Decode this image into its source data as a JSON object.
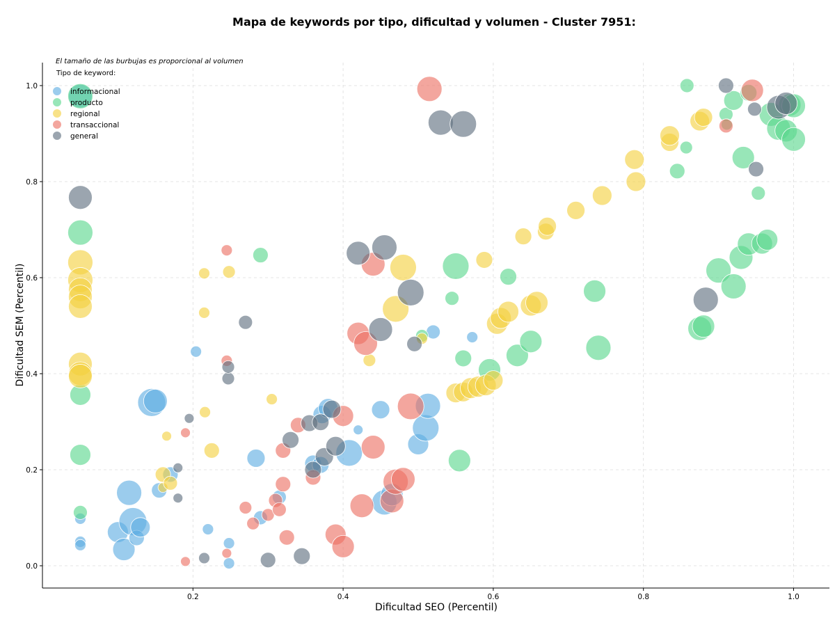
{
  "chart_data": {
    "type": "scatter",
    "title": "Mapa de keywords por tipo, dificultad y volumen - Cluster 7951:",
    "xlabel": "Dificultad SEO (Percentil)",
    "ylabel": "Dificultad SEM (Percentil)",
    "xlim": [
      0.0,
      1.05
    ],
    "ylim": [
      -0.047,
      1.05
    ],
    "xticks": [
      "0.2",
      "0.4",
      "0.6",
      "0.8",
      "1.0"
    ],
    "yticks": [
      "0.0",
      "0.2",
      "0.4",
      "0.6",
      "0.8",
      "1.0"
    ],
    "grid": true,
    "size_note": "El tamaño de las burbujas es proporcional al volumen",
    "legend_title": "Tipo de keyword:",
    "legend_position": "top-left",
    "series": [
      {
        "name": "informacional",
        "color": "#5dade2",
        "points": [
          [
            0.05,
            0.098,
            8
          ],
          [
            0.05,
            0.05,
            8
          ],
          [
            0.05,
            0.043,
            8
          ],
          [
            0.05,
            0.978,
            17
          ],
          [
            0.1,
            0.07,
            15
          ],
          [
            0.108,
            0.034,
            16
          ],
          [
            0.115,
            0.152,
            18
          ],
          [
            0.12,
            0.092,
            20
          ],
          [
            0.125,
            0.058,
            11
          ],
          [
            0.13,
            0.08,
            14
          ],
          [
            0.145,
            0.34,
            20
          ],
          [
            0.15,
            0.343,
            17
          ],
          [
            0.155,
            0.157,
            11
          ],
          [
            0.17,
            0.19,
            11
          ],
          [
            0.204,
            0.446,
            8
          ],
          [
            0.22,
            0.076,
            8
          ],
          [
            0.248,
            0.047,
            8
          ],
          [
            0.248,
            0.005,
            8
          ],
          [
            0.284,
            0.224,
            13
          ],
          [
            0.29,
            0.1,
            10
          ],
          [
            0.315,
            0.143,
            10
          ],
          [
            0.36,
            0.213,
            12
          ],
          [
            0.37,
            0.21,
            12
          ],
          [
            0.372,
            0.315,
            13
          ],
          [
            0.38,
            0.328,
            14
          ],
          [
            0.408,
            0.235,
            19
          ],
          [
            0.42,
            0.283,
            7
          ],
          [
            0.45,
            0.325,
            13
          ],
          [
            0.455,
            0.132,
            18
          ],
          [
            0.465,
            0.148,
            16
          ],
          [
            0.5,
            0.253,
            15
          ],
          [
            0.51,
            0.287,
            19
          ],
          [
            0.513,
            0.333,
            18
          ],
          [
            0.52,
            0.487,
            10
          ],
          [
            0.572,
            0.476,
            8
          ]
        ]
      },
      {
        "name": "producto",
        "color": "#58d68d",
        "points": [
          [
            0.05,
            0.978,
            18
          ],
          [
            0.05,
            0.694,
            18
          ],
          [
            0.05,
            0.356,
            15
          ],
          [
            0.05,
            0.231,
            15
          ],
          [
            0.05,
            0.111,
            10
          ],
          [
            0.29,
            0.647,
            11
          ],
          [
            0.505,
            0.479,
            9
          ],
          [
            0.545,
            0.557,
            10
          ],
          [
            0.55,
            0.624,
            19
          ],
          [
            0.555,
            0.219,
            16
          ],
          [
            0.56,
            0.432,
            12
          ],
          [
            0.595,
            0.408,
            16
          ],
          [
            0.62,
            0.602,
            12
          ],
          [
            0.632,
            0.438,
            16
          ],
          [
            0.65,
            0.467,
            16
          ],
          [
            0.735,
            0.572,
            16
          ],
          [
            0.74,
            0.454,
            18
          ],
          [
            0.845,
            0.822,
            11
          ],
          [
            0.857,
            0.871,
            9
          ],
          [
            0.858,
            1.0,
            10
          ],
          [
            0.875,
            0.494,
            17
          ],
          [
            0.88,
            0.499,
            16
          ],
          [
            0.9,
            0.615,
            18
          ],
          [
            0.91,
            0.94,
            10
          ],
          [
            0.911,
            0.919,
            8
          ],
          [
            0.92,
            0.582,
            18
          ],
          [
            0.92,
            0.969,
            14
          ],
          [
            0.93,
            0.642,
            17
          ],
          [
            0.933,
            0.85,
            16
          ],
          [
            0.94,
            0.67,
            16
          ],
          [
            0.94,
            0.985,
            12
          ],
          [
            0.953,
            0.776,
            10
          ],
          [
            0.958,
            0.671,
            15
          ],
          [
            0.965,
            0.679,
            15
          ],
          [
            0.97,
            0.94,
            17
          ],
          [
            0.98,
            0.911,
            17
          ],
          [
            0.99,
            0.906,
            16
          ],
          [
            0.995,
            0.96,
            16
          ],
          [
            1.0,
            0.958,
            17
          ],
          [
            1.0,
            0.888,
            17
          ]
        ]
      },
      {
        "name": "regional",
        "color": "#f4d03f",
        "points": [
          [
            0.05,
            0.632,
            18
          ],
          [
            0.05,
            0.595,
            18
          ],
          [
            0.05,
            0.575,
            17
          ],
          [
            0.05,
            0.56,
            17
          ],
          [
            0.05,
            0.54,
            17
          ],
          [
            0.05,
            0.42,
            17
          ],
          [
            0.05,
            0.4,
            17
          ],
          [
            0.05,
            0.395,
            17
          ],
          [
            0.16,
            0.163,
            7
          ],
          [
            0.16,
            0.19,
            11
          ],
          [
            0.165,
            0.27,
            7
          ],
          [
            0.17,
            0.172,
            10
          ],
          [
            0.215,
            0.609,
            8
          ],
          [
            0.215,
            0.527,
            8
          ],
          [
            0.216,
            0.32,
            8
          ],
          [
            0.225,
            0.24,
            11
          ],
          [
            0.248,
            0.612,
            9
          ],
          [
            0.305,
            0.347,
            8
          ],
          [
            0.435,
            0.428,
            9
          ],
          [
            0.47,
            0.535,
            19
          ],
          [
            0.48,
            0.621,
            19
          ],
          [
            0.505,
            0.473,
            8
          ],
          [
            0.55,
            0.36,
            14
          ],
          [
            0.56,
            0.362,
            14
          ],
          [
            0.57,
            0.37,
            15
          ],
          [
            0.58,
            0.373,
            15
          ],
          [
            0.59,
            0.376,
            15
          ],
          [
            0.6,
            0.386,
            14
          ],
          [
            0.605,
            0.504,
            15
          ],
          [
            0.61,
            0.516,
            15
          ],
          [
            0.62,
            0.529,
            15
          ],
          [
            0.64,
            0.686,
            12
          ],
          [
            0.65,
            0.542,
            15
          ],
          [
            0.658,
            0.548,
            16
          ],
          [
            0.67,
            0.696,
            12
          ],
          [
            0.672,
            0.707,
            13
          ],
          [
            0.588,
            0.637,
            12
          ],
          [
            0.71,
            0.74,
            13
          ],
          [
            0.745,
            0.771,
            14
          ],
          [
            0.788,
            0.846,
            14
          ],
          [
            0.79,
            0.8,
            14
          ],
          [
            0.835,
            0.882,
            13
          ],
          [
            0.835,
            0.896,
            14
          ],
          [
            0.875,
            0.926,
            14
          ],
          [
            0.88,
            0.934,
            13
          ]
        ]
      },
      {
        "name": "transaccional",
        "color": "#ec7063",
        "points": [
          [
            0.19,
            0.009,
            7
          ],
          [
            0.19,
            0.277,
            7
          ],
          [
            0.245,
            0.657,
            8
          ],
          [
            0.245,
            0.427,
            8
          ],
          [
            0.245,
            0.026,
            7
          ],
          [
            0.27,
            0.121,
            9
          ],
          [
            0.28,
            0.088,
            9
          ],
          [
            0.3,
            0.106,
            9
          ],
          [
            0.31,
            0.136,
            10
          ],
          [
            0.315,
            0.117,
            10
          ],
          [
            0.32,
            0.24,
            11
          ],
          [
            0.32,
            0.17,
            11
          ],
          [
            0.325,
            0.059,
            11
          ],
          [
            0.34,
            0.293,
            11
          ],
          [
            0.36,
            0.184,
            11
          ],
          [
            0.39,
            0.065,
            15
          ],
          [
            0.4,
            0.04,
            16
          ],
          [
            0.4,
            0.312,
            15
          ],
          [
            0.42,
            0.484,
            16
          ],
          [
            0.425,
            0.125,
            17
          ],
          [
            0.43,
            0.463,
            17
          ],
          [
            0.44,
            0.628,
            17
          ],
          [
            0.44,
            0.247,
            17
          ],
          [
            0.465,
            0.135,
            17
          ],
          [
            0.47,
            0.175,
            18
          ],
          [
            0.48,
            0.18,
            17
          ],
          [
            0.49,
            0.332,
            19
          ],
          [
            0.515,
            0.993,
            18
          ],
          [
            0.91,
            0.916,
            10
          ],
          [
            0.945,
            0.99,
            16
          ]
        ]
      },
      {
        "name": "general",
        "color": "#5d6d7e",
        "points": [
          [
            0.05,
            0.767,
            17
          ],
          [
            0.18,
            0.141,
            7
          ],
          [
            0.18,
            0.204,
            7
          ],
          [
            0.195,
            0.307,
            7
          ],
          [
            0.215,
            0.016,
            8
          ],
          [
            0.247,
            0.39,
            9
          ],
          [
            0.247,
            0.414,
            9
          ],
          [
            0.27,
            0.507,
            10
          ],
          [
            0.3,
            0.012,
            11
          ],
          [
            0.33,
            0.262,
            12
          ],
          [
            0.345,
            0.02,
            12
          ],
          [
            0.355,
            0.297,
            12
          ],
          [
            0.36,
            0.2,
            12
          ],
          [
            0.37,
            0.299,
            12
          ],
          [
            0.375,
            0.227,
            13
          ],
          [
            0.385,
            0.326,
            13
          ],
          [
            0.39,
            0.249,
            14
          ],
          [
            0.42,
            0.651,
            17
          ],
          [
            0.45,
            0.492,
            17
          ],
          [
            0.455,
            0.663,
            18
          ],
          [
            0.49,
            0.569,
            19
          ],
          [
            0.495,
            0.462,
            11
          ],
          [
            0.53,
            0.923,
            18
          ],
          [
            0.56,
            0.92,
            19
          ],
          [
            0.883,
            0.554,
            18
          ],
          [
            0.91,
            1.0,
            11
          ],
          [
            0.948,
            0.951,
            10
          ],
          [
            0.95,
            0.826,
            11
          ],
          [
            0.98,
            0.955,
            17
          ],
          [
            0.99,
            0.963,
            16
          ]
        ]
      }
    ]
  }
}
